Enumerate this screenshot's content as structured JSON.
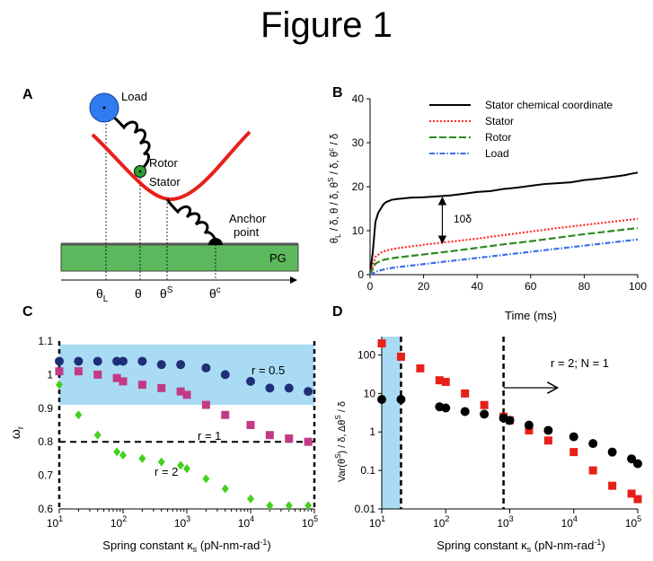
{
  "figure_title": "Figure 1",
  "panel_a": {
    "letter": "A",
    "labels": {
      "load": "Load",
      "rotor": "Rotor",
      "stator": "Stator",
      "anchor1": "Anchor",
      "anchor2": "point",
      "pg": "PG"
    },
    "axis": {
      "theta_l_main": "θ",
      "theta_l_sub": "L",
      "theta": "θ",
      "theta_s_main": "θ",
      "theta_s_sup": "S",
      "theta_c_main": "θ",
      "theta_c_sup": "c"
    },
    "colors": {
      "load": "#2f7bf0",
      "rotor": "#2fa02f",
      "potential": "#e8201a",
      "pg": "#5cb85c"
    }
  },
  "panel_b": {
    "letter": "B",
    "xlabel": "Time (ms)",
    "ylabel": "θL / δ,  θ / δ,  θS / δ,  θc / δ",
    "ylabel_parts": {
      "t1": "θ",
      "s1": "L",
      "t2": " / δ,  θ / δ,  θ",
      "s2": "S",
      "t3": " / δ,  θ",
      "s3": "c",
      "t4": " / δ"
    },
    "annotation": "10δ",
    "chart_data": {
      "type": "line",
      "xlim": [
        0,
        100
      ],
      "ylim": [
        0,
        40
      ],
      "xticks": [
        0,
        20,
        40,
        60,
        80,
        100
      ],
      "yticks": [
        0,
        10,
        20,
        30,
        40
      ],
      "series": [
        {
          "name": "Stator chemical coordinate",
          "color": "#000000",
          "dash": "",
          "x": [
            0,
            1,
            2,
            3,
            4,
            5,
            6,
            8,
            10,
            15,
            20,
            25,
            30,
            35,
            40,
            45,
            50,
            55,
            60,
            65,
            70,
            75,
            80,
            85,
            90,
            95,
            98,
            100
          ],
          "y": [
            0,
            5,
            12,
            14,
            15,
            16,
            16.5,
            17,
            17.2,
            17.5,
            17.6,
            17.8,
            18,
            18.4,
            18.8,
            19,
            19.5,
            19.8,
            20.2,
            20.6,
            20.8,
            21,
            21.5,
            21.8,
            22.2,
            22.6,
            23,
            23.2
          ]
        },
        {
          "name": "Stator",
          "color": "#ff2a2a",
          "dash": "2,2",
          "x": [
            0,
            2,
            4,
            6,
            10,
            20,
            30,
            40,
            50,
            60,
            70,
            80,
            90,
            100
          ],
          "y": [
            0,
            4,
            5,
            5.5,
            6,
            6.8,
            7.5,
            8.2,
            9,
            9.8,
            10.6,
            11.3,
            12,
            12.7
          ]
        },
        {
          "name": "Rotor",
          "color": "#2e8b22",
          "dash": "8,3",
          "x": [
            0,
            2,
            4,
            6,
            10,
            20,
            30,
            40,
            50,
            60,
            70,
            80,
            90,
            100
          ],
          "y": [
            0,
            2.5,
            3.2,
            3.5,
            3.9,
            4.6,
            5.3,
            6.1,
            6.9,
            7.6,
            8.4,
            9.2,
            9.9,
            10.6
          ]
        },
        {
          "name": "Load",
          "color": "#3b6fe8",
          "dash": "6,2,1.5,2",
          "x": [
            0,
            2,
            4,
            6,
            10,
            20,
            30,
            40,
            50,
            60,
            70,
            80,
            90,
            100
          ],
          "y": [
            0,
            0.6,
            1,
            1.3,
            1.7,
            2.4,
            3.1,
            3.8,
            4.5,
            5.2,
            5.9,
            6.6,
            7.3,
            8
          ]
        }
      ]
    }
  },
  "panel_c": {
    "letter": "C",
    "xlabel": "Spring constant κs (pN-nm-rad-1)",
    "xlabel_parts": {
      "main": "Spring constant κ",
      "sub": "s",
      "rest": " (pN-nm-rad",
      "sup": "-1",
      "close": ")"
    },
    "ylabel": "ωr",
    "ylabel_parts": {
      "main": "ω",
      "sub": "r"
    },
    "chart_data": {
      "type": "scatter",
      "xscale": "log",
      "xlim": [
        10,
        100000
      ],
      "ylim": [
        0.6,
        1.1
      ],
      "xtick_labels": [
        "10",
        "10",
        "10",
        "10",
        "10"
      ],
      "xtick_exps": [
        "1",
        "2",
        "3",
        "4",
        "5"
      ],
      "ytick_labels": [
        "0.6",
        "0.7",
        "0.8",
        "0.9",
        "1",
        "1.1"
      ],
      "band": {
        "y0": 0.91,
        "y1": 1.09,
        "color": "#a9dcf4"
      },
      "hline": 0.8,
      "annotations": [
        "r = 0.5",
        "r = 1",
        "r = 2"
      ],
      "series": [
        {
          "name": "r = 0.5",
          "marker": "circle",
          "color": "#1e2f78",
          "x": [
            10,
            20,
            40,
            80,
            100,
            200,
            400,
            800,
            2000,
            4000,
            10000,
            20000,
            40000,
            80000
          ],
          "y": [
            1.04,
            1.04,
            1.04,
            1.04,
            1.04,
            1.04,
            1.03,
            1.03,
            1.02,
            1.0,
            0.98,
            0.96,
            0.96,
            0.95
          ]
        },
        {
          "name": "r = 1",
          "marker": "square",
          "color": "#c23a86",
          "x": [
            10,
            20,
            40,
            80,
            100,
            200,
            400,
            800,
            1000,
            2000,
            4000,
            10000,
            20000,
            40000,
            80000
          ],
          "y": [
            1.01,
            1.01,
            1.0,
            0.99,
            0.98,
            0.97,
            0.96,
            0.95,
            0.94,
            0.91,
            0.88,
            0.85,
            0.82,
            0.81,
            0.8
          ]
        },
        {
          "name": "r = 2",
          "marker": "diamond",
          "color": "#44d01e",
          "x": [
            10,
            20,
            40,
            80,
            100,
            200,
            400,
            800,
            1000,
            2000,
            4000,
            10000,
            20000,
            40000,
            80000
          ],
          "y": [
            0.97,
            0.88,
            0.82,
            0.77,
            0.76,
            0.75,
            0.74,
            0.73,
            0.72,
            0.69,
            0.66,
            0.63,
            0.61,
            0.61,
            0.61
          ]
        }
      ]
    }
  },
  "panel_d": {
    "letter": "D",
    "xlabel": "Spring constant κs (pN-nm-rad-1)",
    "xlabel_parts": {
      "main": "Spring constant κ",
      "sub": "s",
      "rest": " (pN-nm-rad",
      "sup": "-1",
      "close": ")"
    },
    "ylabel": "Var(θS) / δ,   ΔθS / δ",
    "ylabel_parts": {
      "t1": "Var(θ",
      "s1": "S",
      "t2": ") / δ,    Δθ",
      "s2": "S",
      "t3": " / δ"
    },
    "annotation": "r = 2; N = 1",
    "chart_data": {
      "type": "scatter",
      "xscale": "log",
      "yscale": "log",
      "xlim": [
        10,
        100000
      ],
      "ylim": [
        0.01,
        300
      ],
      "xtick_labels": [
        "10",
        "10",
        "10",
        "10",
        "10"
      ],
      "xtick_exps": [
        "1",
        "2",
        "3",
        "4",
        "5"
      ],
      "ytick_labels": [
        "0.01",
        "0.1",
        "1",
        "10",
        "100"
      ],
      "band": {
        "x0": 10,
        "x1": 20,
        "color": "#a9dcf4"
      },
      "vlines": [
        20,
        800
      ],
      "series": [
        {
          "name": "Var(θS)/δ",
          "marker": "square",
          "color": "#e8201a",
          "x": [
            10,
            20,
            40,
            80,
            100,
            200,
            400,
            800,
            1000,
            2000,
            4000,
            10000,
            20000,
            40000,
            80000,
            100000
          ],
          "y": [
            200,
            90,
            45,
            22,
            20,
            10,
            5,
            2.5,
            2,
            1.1,
            0.6,
            0.3,
            0.1,
            0.04,
            0.025,
            0.018
          ]
        },
        {
          "name": "ΔθS/δ",
          "marker": "circle",
          "color": "#000000",
          "x": [
            10,
            20,
            80,
            100,
            200,
            400,
            800,
            1000,
            2000,
            4000,
            10000,
            20000,
            40000,
            80000,
            100000
          ],
          "y": [
            7,
            7,
            4.5,
            4.2,
            3.4,
            2.9,
            2.3,
            2,
            1.5,
            1.1,
            0.75,
            0.5,
            0.3,
            0.2,
            0.15
          ]
        }
      ]
    }
  }
}
